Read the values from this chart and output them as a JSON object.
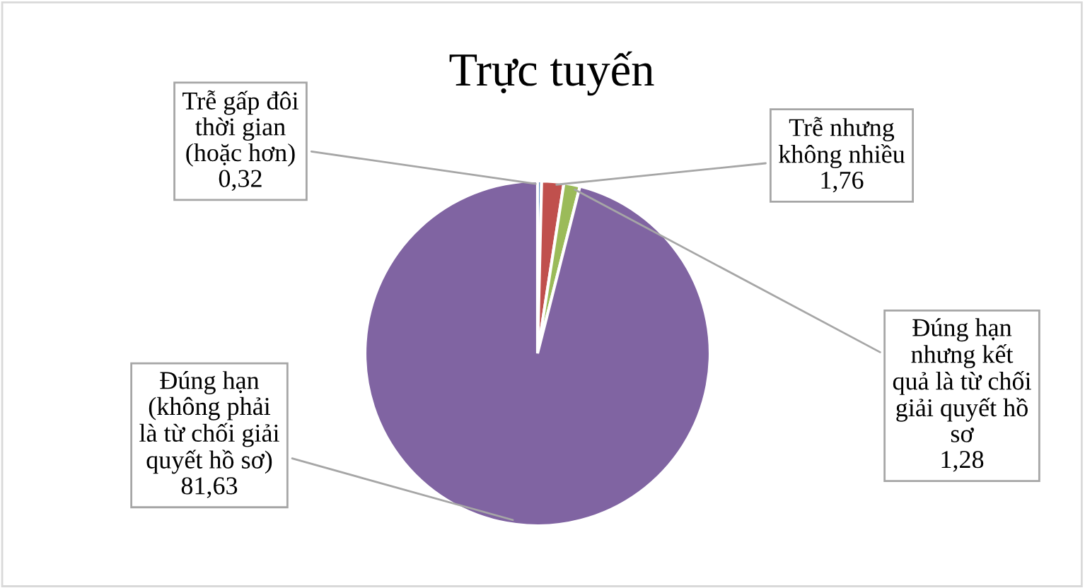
{
  "chart_data": {
    "type": "pie",
    "title": "Trực tuyến",
    "categories": [
      "Trễ gấp đôi\nthời gian\n(hoặc hơn)",
      "Trễ nhưng\nkhông nhiều",
      "Đúng hạn\nnhưng kết\nquả là từ chối\ngiải quyết hồ\nsơ",
      "Đúng hạn\n(không phải\nlà từ chối giải\nquyết hồ sơ)"
    ],
    "values": [
      0.32,
      1.76,
      1.28,
      81.63
    ],
    "value_labels": [
      "0,32",
      "1,76",
      "1,28",
      "81,63"
    ],
    "colors": [
      "#4f81bd",
      "#c0504d",
      "#9bbb59",
      "#8064a2"
    ],
    "legend": false
  }
}
